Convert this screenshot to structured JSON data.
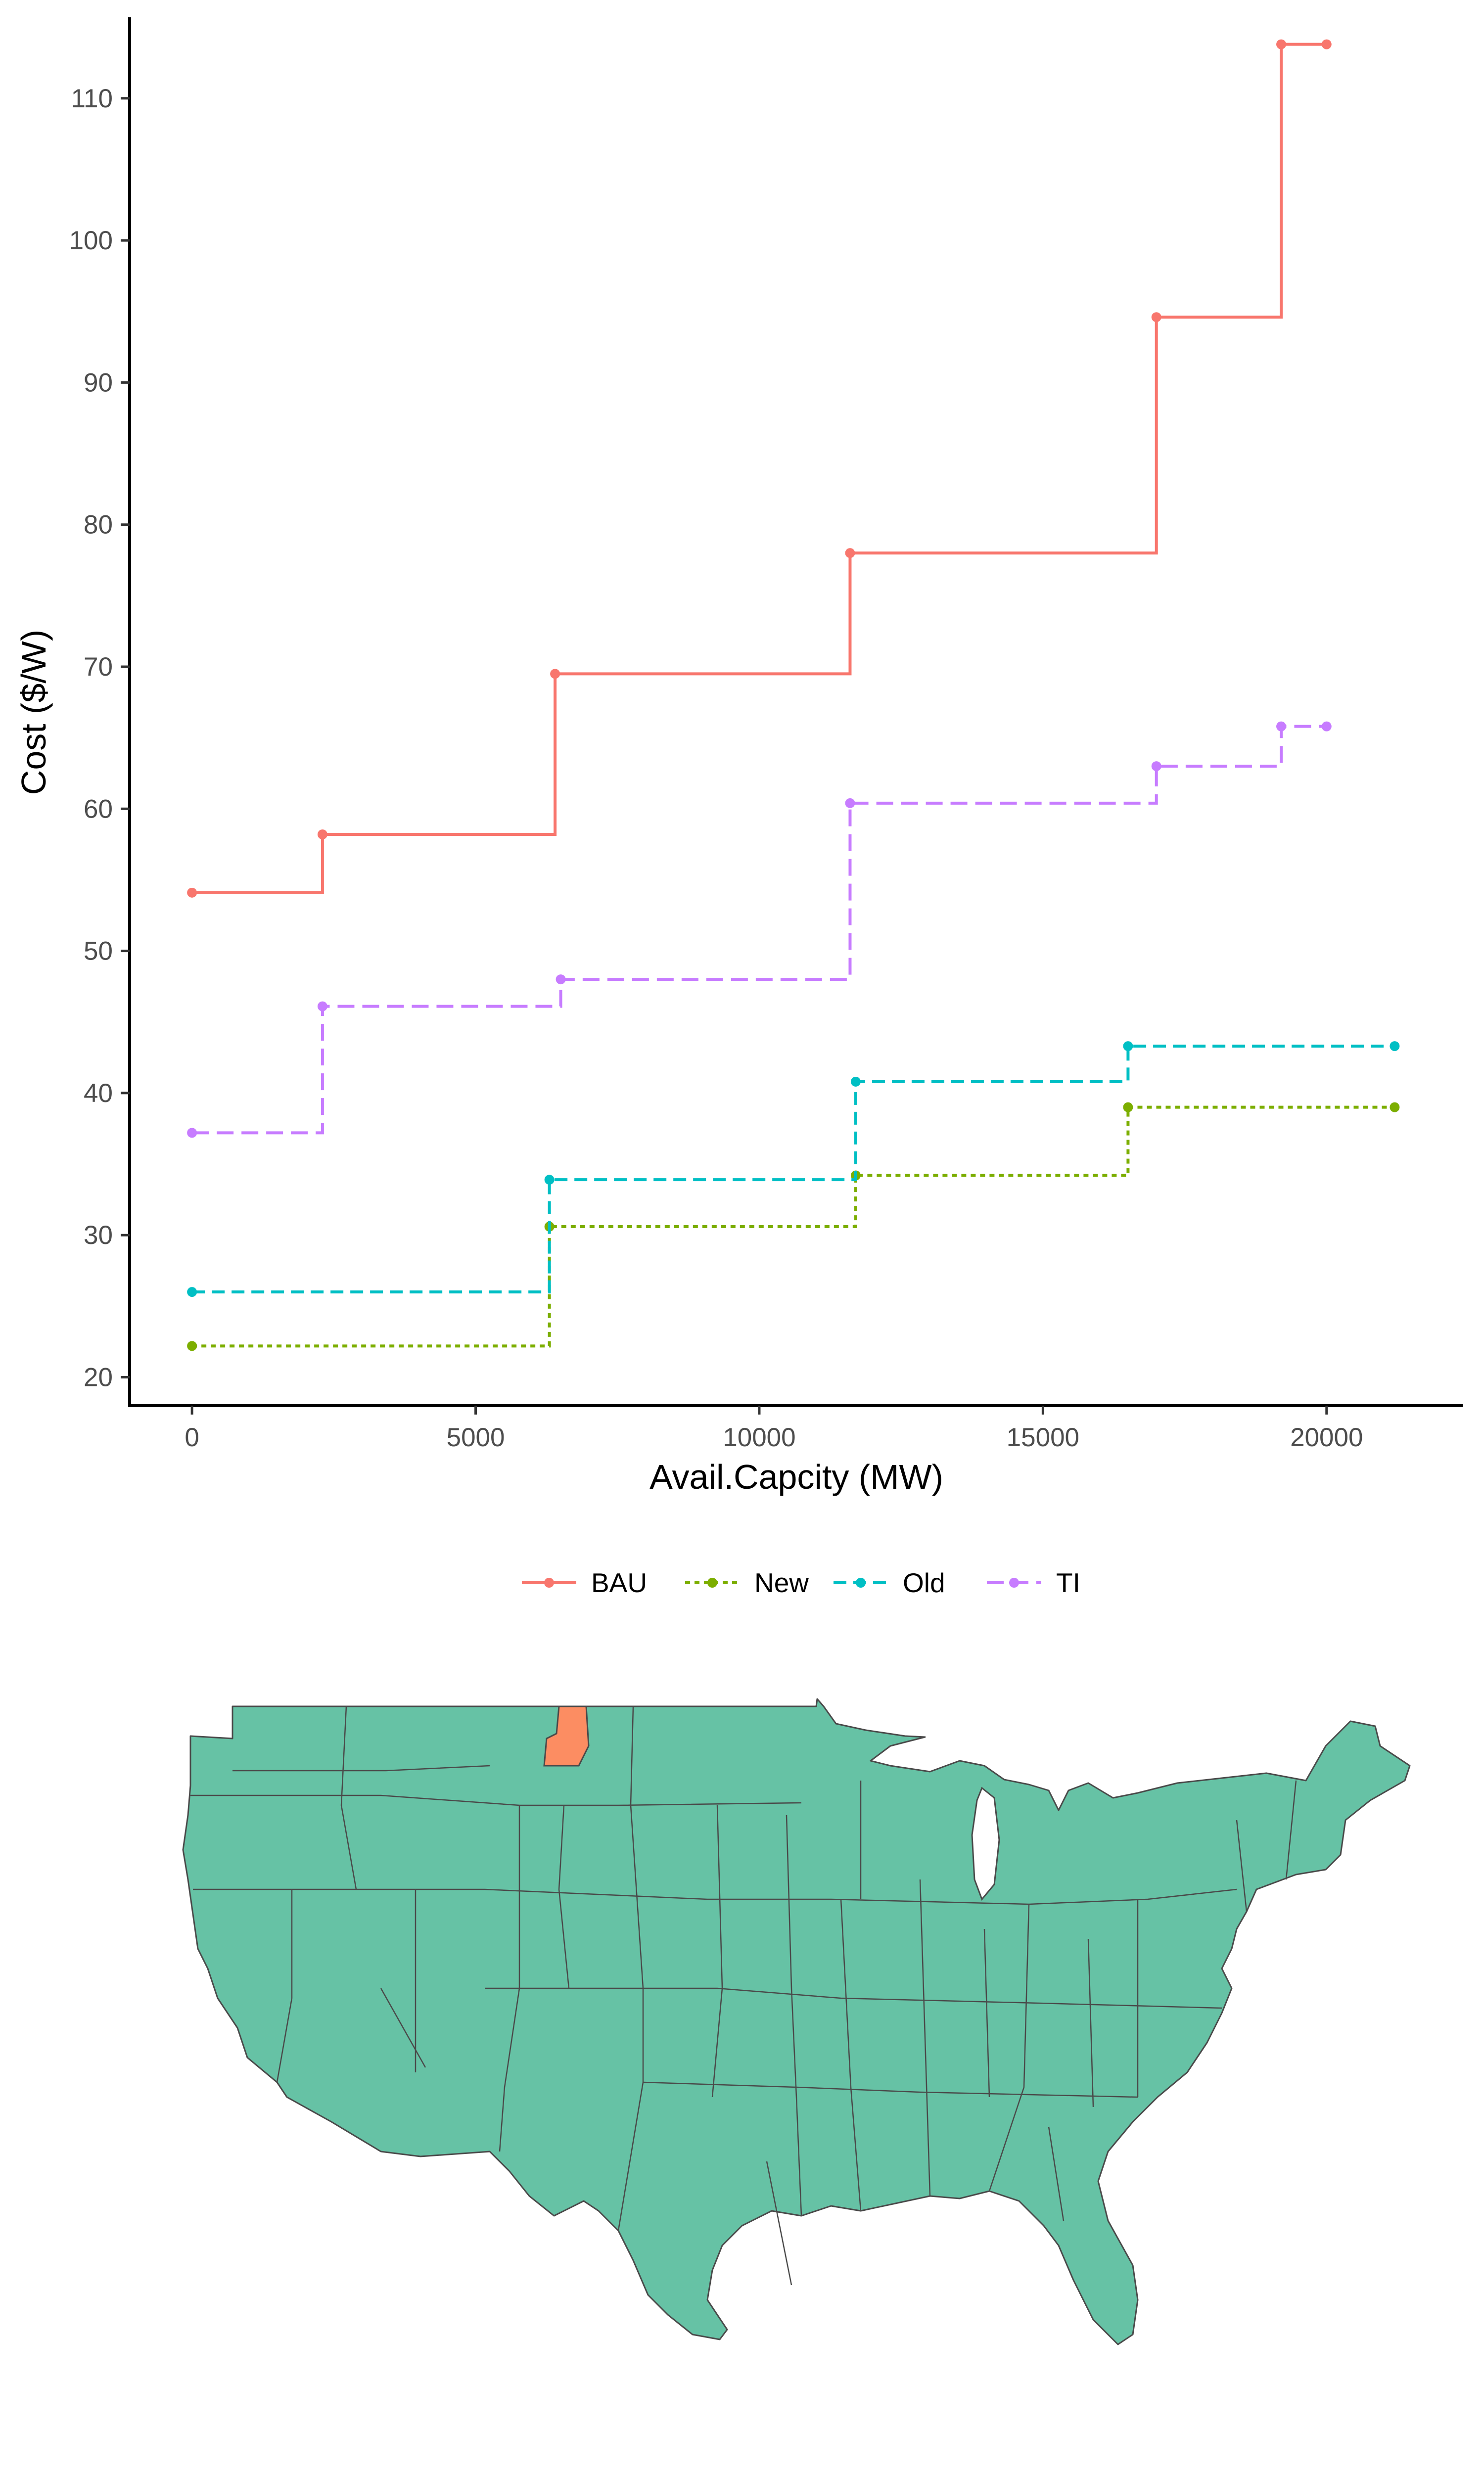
{
  "chart_data": {
    "type": "line",
    "subtype": "step",
    "title": "",
    "xlabel": "Avail.Capcity (MW)",
    "ylabel": "Cost ($/W)",
    "xlim": [
      -1100,
      22400
    ],
    "ylim": [
      18,
      115.7
    ],
    "x_ticks": [
      0,
      5000,
      10000,
      15000,
      20000
    ],
    "x_tick_labels": [
      "0",
      "5000",
      "10000",
      "15000",
      "20000"
    ],
    "y_ticks": [
      20,
      30,
      40,
      50,
      60,
      70,
      80,
      90,
      100,
      110
    ],
    "y_tick_labels": [
      "20",
      "30",
      "40",
      "50",
      "60",
      "70",
      "80",
      "90",
      "100",
      "110"
    ],
    "grid": false,
    "legend_position": "bottom",
    "series": [
      {
        "name": "BAU",
        "color": "#F8766D",
        "dash": "solid",
        "points": [
          [
            0,
            54.1
          ],
          [
            2300,
            58.2
          ],
          [
            6400,
            69.5
          ],
          [
            11600,
            78.0
          ],
          [
            17000,
            94.6
          ],
          [
            19200,
            113.8
          ],
          [
            20000,
            113.8
          ]
        ]
      },
      {
        "name": "New",
        "color": "#7CAE00",
        "dash": "dotted",
        "points": [
          [
            0,
            22.2
          ],
          [
            6300,
            30.6
          ],
          [
            11700,
            34.2
          ],
          [
            16500,
            39.0
          ],
          [
            21200,
            39.0
          ]
        ]
      },
      {
        "name": "Old",
        "color": "#00BFC4",
        "dash": "dashed",
        "points": [
          [
            0,
            26.0
          ],
          [
            6300,
            33.9
          ],
          [
            11700,
            40.8
          ],
          [
            16500,
            43.3
          ],
          [
            21200,
            43.3
          ]
        ]
      },
      {
        "name": "TI",
        "color": "#C77CFF",
        "dash": "longdash",
        "points": [
          [
            0,
            37.2
          ],
          [
            2300,
            46.1
          ],
          [
            6500,
            48.0
          ],
          [
            11600,
            60.4
          ],
          [
            17000,
            63.0
          ],
          [
            19200,
            65.8
          ],
          [
            20000,
            65.8
          ]
        ]
      }
    ]
  },
  "map": {
    "region_fill": "#66C2A5",
    "highlight_fill": "#FC8D62",
    "border_color": "#4a4a4a"
  }
}
